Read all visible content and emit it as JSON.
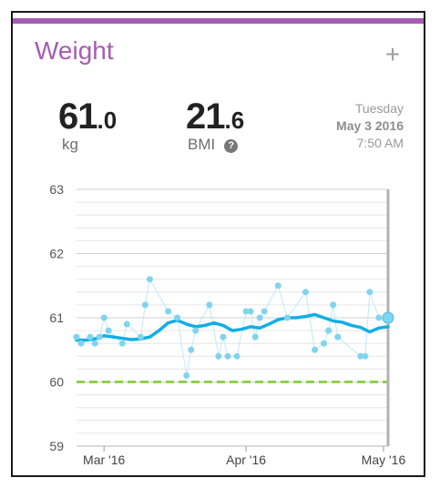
{
  "widget": {
    "title": "Weight",
    "add_icon": "plus-icon",
    "help_icon": "question-circle-icon"
  },
  "weight": {
    "integer": "61",
    "decimal": ".0",
    "unit": "kg"
  },
  "bmi": {
    "integer": "21",
    "decimal": ".6",
    "unit": "BMI",
    "help_label": "?"
  },
  "date": {
    "weekday": "Tuesday",
    "date": "May 3 2016",
    "time": "7:50 AM"
  },
  "colors": {
    "accent": "#a45db2",
    "points": "#7fd4ee",
    "trend": "#12aee6",
    "goal": "#8ed24b",
    "grid": "#d9d9d9"
  },
  "chart_data": {
    "type": "line",
    "ylim": [
      59,
      63
    ],
    "yticks": [
      59,
      60,
      61,
      62,
      63
    ],
    "xtick_labels": [
      "Mar '16",
      "Apr '16",
      "May '16"
    ],
    "xtick_days": [
      0,
      31,
      61
    ],
    "xlim_days": [
      -6,
      62
    ],
    "goal": 60,
    "series": [
      {
        "kind": "measurements",
        "x": [
          -6,
          -5,
          -3,
          -2,
          -1,
          0,
          1,
          4,
          5,
          8,
          9,
          10,
          14,
          16,
          18,
          19,
          20,
          23,
          25,
          26,
          27,
          29,
          31,
          32,
          33,
          34,
          35,
          38,
          40,
          44,
          46,
          48,
          49,
          50,
          51,
          56,
          57,
          58,
          60,
          62
        ],
        "y": [
          60.7,
          60.6,
          60.7,
          60.6,
          60.7,
          61.0,
          60.8,
          60.6,
          60.9,
          60.7,
          61.2,
          61.6,
          61.1,
          61.0,
          60.1,
          60.5,
          60.8,
          61.2,
          60.4,
          60.7,
          60.4,
          60.4,
          61.1,
          61.1,
          60.7,
          61.0,
          61.1,
          61.5,
          61.0,
          61.4,
          60.5,
          60.6,
          60.8,
          61.2,
          60.7,
          60.4,
          60.4,
          61.4,
          61.0,
          61.0
        ]
      },
      {
        "kind": "trend",
        "x": [
          -6,
          -4,
          -2,
          0,
          2,
          4,
          6,
          8,
          10,
          12,
          14,
          16,
          18,
          20,
          22,
          24,
          26,
          28,
          30,
          32,
          34,
          36,
          38,
          40,
          42,
          44,
          46,
          48,
          50,
          52,
          54,
          56,
          58,
          60,
          62
        ],
        "y": [
          60.65,
          60.65,
          60.67,
          60.72,
          60.7,
          60.68,
          60.66,
          60.67,
          60.7,
          60.8,
          60.92,
          60.96,
          60.9,
          60.86,
          60.88,
          60.92,
          60.88,
          60.8,
          60.82,
          60.86,
          60.84,
          60.9,
          60.97,
          61.0,
          61.0,
          61.02,
          61.05,
          61.0,
          60.95,
          60.93,
          60.88,
          60.85,
          60.78,
          60.84,
          60.86
        ]
      }
    ]
  }
}
